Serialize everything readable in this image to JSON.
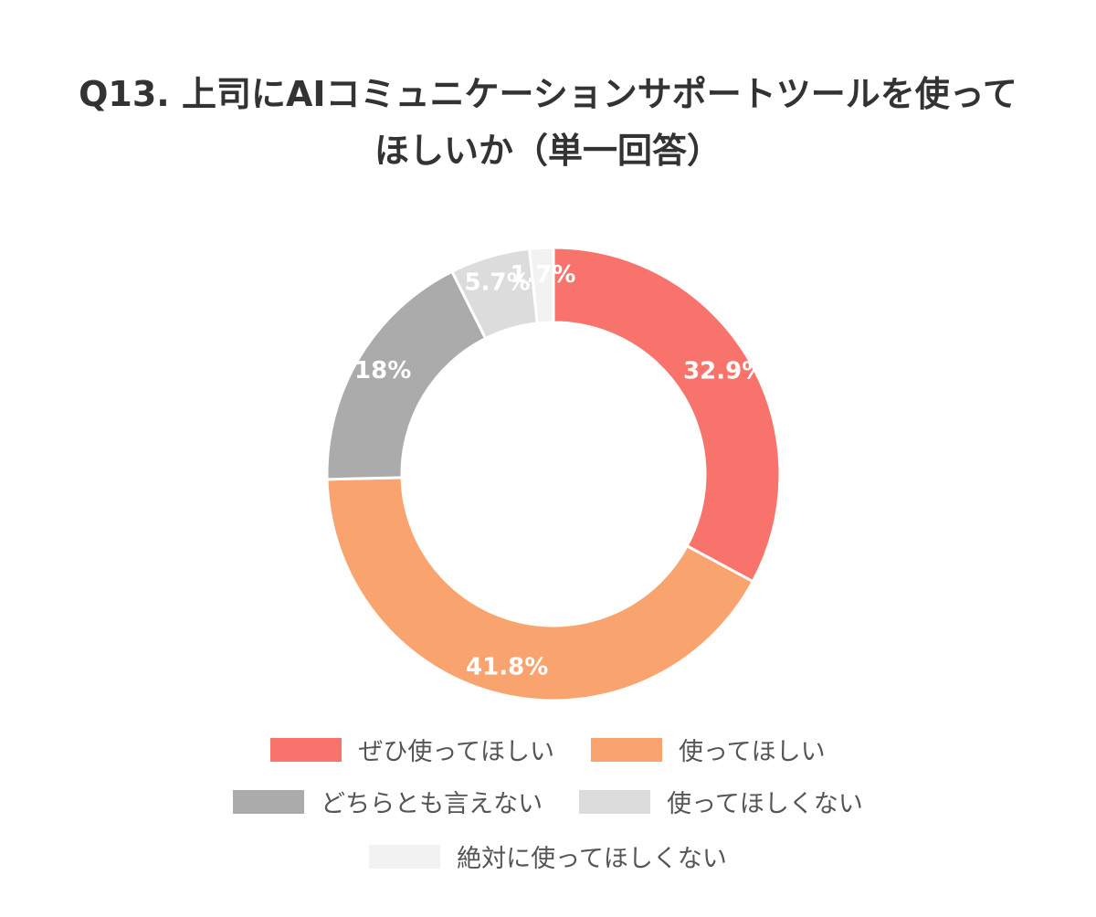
{
  "chart_data": {
    "type": "pie",
    "title_lines": [
      "Q13. 上司にAIコミュニケーションサポートツールを使って",
      "ほしいか（単一回答）"
    ],
    "categories": [
      "ぜひ使ってほしい",
      "使ってほしい",
      "どちらとも言えない",
      "使ってほしくない",
      "絶対に使ってほしくない"
    ],
    "values": [
      32.9,
      41.8,
      18,
      5.7,
      1.7
    ],
    "value_labels": [
      "32.9%",
      "41.8%",
      "18%",
      "5.7%",
      "1.7%"
    ],
    "colors": [
      "#f8736b",
      "#f9a46e",
      "#ababab",
      "#dcdcdc",
      "#f2f2f2"
    ],
    "donut": true,
    "legend_position": "bottom"
  }
}
